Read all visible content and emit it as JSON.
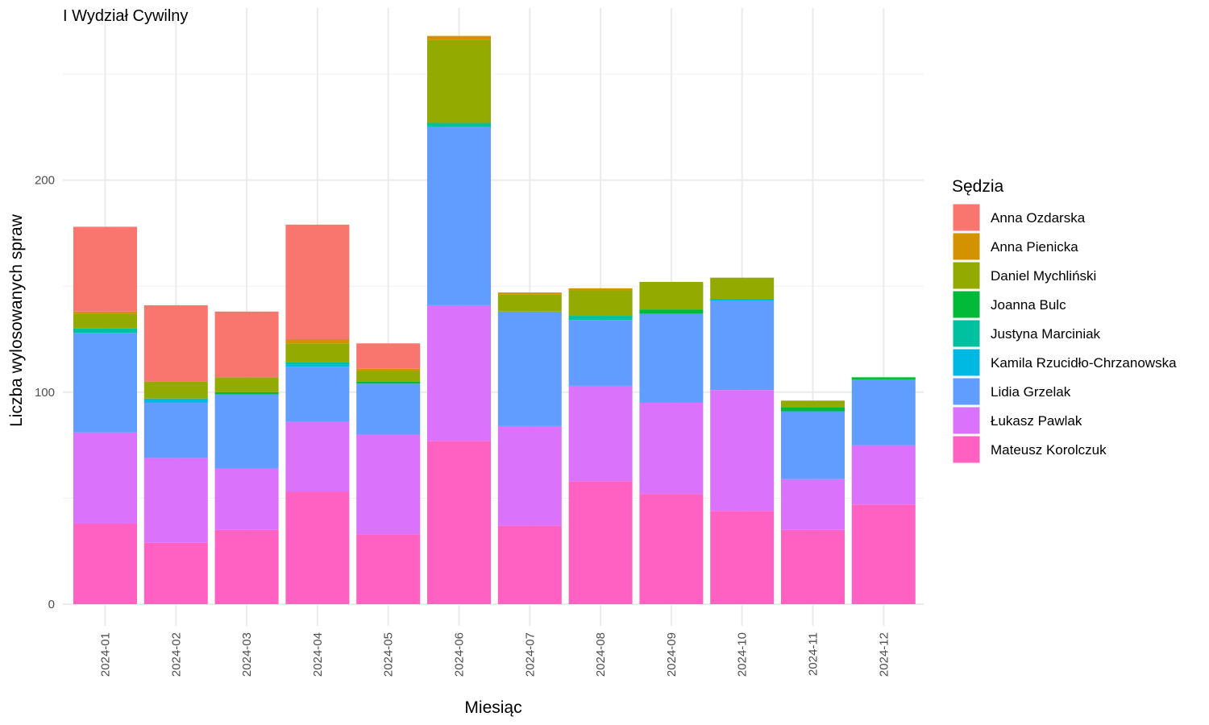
{
  "chart_data": {
    "type": "bar",
    "stacked": true,
    "subtitle": "I Wydział Cywilny",
    "xlabel": "Miesiąc",
    "ylabel": "Liczba wylosowanych spraw",
    "ylim": [
      0,
      270
    ],
    "yticks": [
      0,
      100,
      200
    ],
    "grid": true,
    "legend_title": "Sędzia",
    "legend_position": "right",
    "categories": [
      "2024-01",
      "2024-02",
      "2024-03",
      "2024-04",
      "2024-05",
      "2024-06",
      "2024-07",
      "2024-08",
      "2024-09",
      "2024-10",
      "2024-11",
      "2024-12"
    ],
    "series": [
      {
        "name": "Mateusz Korolczuk",
        "color": "#FF61C3",
        "values": [
          38,
          29,
          35,
          53,
          33,
          77,
          37,
          58,
          52,
          44,
          35,
          47
        ]
      },
      {
        "name": "Łukasz Pawlak",
        "color": "#DB72FB",
        "values": [
          43,
          40,
          29,
          33,
          47,
          64,
          47,
          45,
          43,
          57,
          24,
          28
        ]
      },
      {
        "name": "Lidia Grzelak",
        "color": "#619CFF",
        "values": [
          47,
          26,
          35,
          26,
          24,
          84,
          54,
          31,
          42,
          42,
          32,
          31
        ]
      },
      {
        "name": "Kamila Rzucidło-Chrzanowska",
        "color": "#00B9E3",
        "values": [
          0,
          2,
          0,
          1,
          0,
          0,
          0,
          0,
          0,
          1,
          0,
          0
        ]
      },
      {
        "name": "Justyna Marciniak",
        "color": "#00C19F",
        "values": [
          2,
          0,
          0,
          1,
          0,
          2,
          0,
          2,
          0,
          0,
          0,
          0
        ]
      },
      {
        "name": "Joanna Bulc",
        "color": "#00BA38",
        "values": [
          0,
          0,
          1,
          0,
          1,
          0,
          0,
          0,
          2,
          0,
          2,
          1
        ]
      },
      {
        "name": "Daniel Mychliński",
        "color": "#93AA00",
        "values": [
          7,
          8,
          7,
          9,
          5,
          39,
          8,
          12,
          13,
          10,
          3,
          0
        ]
      },
      {
        "name": "Anna Pienicka",
        "color": "#D39200",
        "values": [
          1,
          0,
          0,
          2,
          1,
          2,
          1,
          1,
          0,
          0,
          0,
          0
        ]
      },
      {
        "name": "Anna Ozdarska",
        "color": "#F8766D",
        "values": [
          40,
          36,
          31,
          54,
          12,
          0,
          0,
          0,
          0,
          0,
          0,
          0
        ]
      }
    ],
    "legend_order": [
      "Anna Ozdarska",
      "Anna Pienicka",
      "Daniel Mychliński",
      "Joanna Bulc",
      "Justyna Marciniak",
      "Kamila Rzucidło-Chrzanowska",
      "Lidia Grzelak",
      "Łukasz Pawlak",
      "Mateusz Korolczuk"
    ]
  }
}
